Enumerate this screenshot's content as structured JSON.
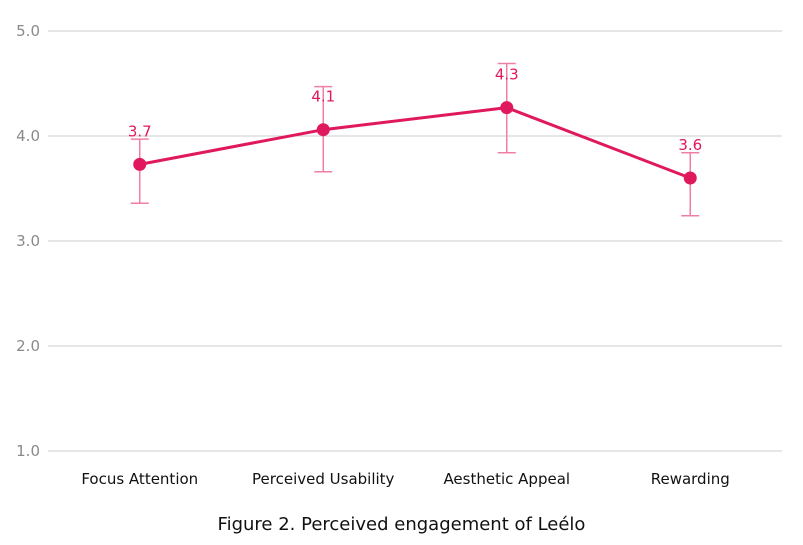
{
  "figure_caption": "Figure 2. Perceived engagement of Leélo",
  "chart_data": {
    "type": "line",
    "title": "",
    "xlabel": "",
    "ylabel": "",
    "categories": [
      "Focus Attention",
      "Perceived Usability",
      "Aesthetic Appeal",
      "Rewarding"
    ],
    "series": [
      {
        "values": [
          3.73,
          4.06,
          4.27,
          3.6
        ],
        "data_labels": [
          "3.7",
          "4.1",
          "4.3",
          "3.6"
        ],
        "error_low": [
          3.36,
          3.66,
          3.84,
          3.24
        ],
        "error_high": [
          3.97,
          4.47,
          4.69,
          3.84
        ],
        "color": "#e0185e"
      }
    ],
    "ylim": [
      1.0,
      5.0
    ],
    "yticks": [
      "1.0",
      "2.0",
      "3.0",
      "4.0",
      "5.0"
    ],
    "grid": true,
    "legend": "none",
    "colors": {
      "line": "#e0185e",
      "errorbar": "#ef7fa6",
      "grid": "#cccccc",
      "tick_text": "#8a8a8a",
      "category_text": "#111111"
    }
  }
}
